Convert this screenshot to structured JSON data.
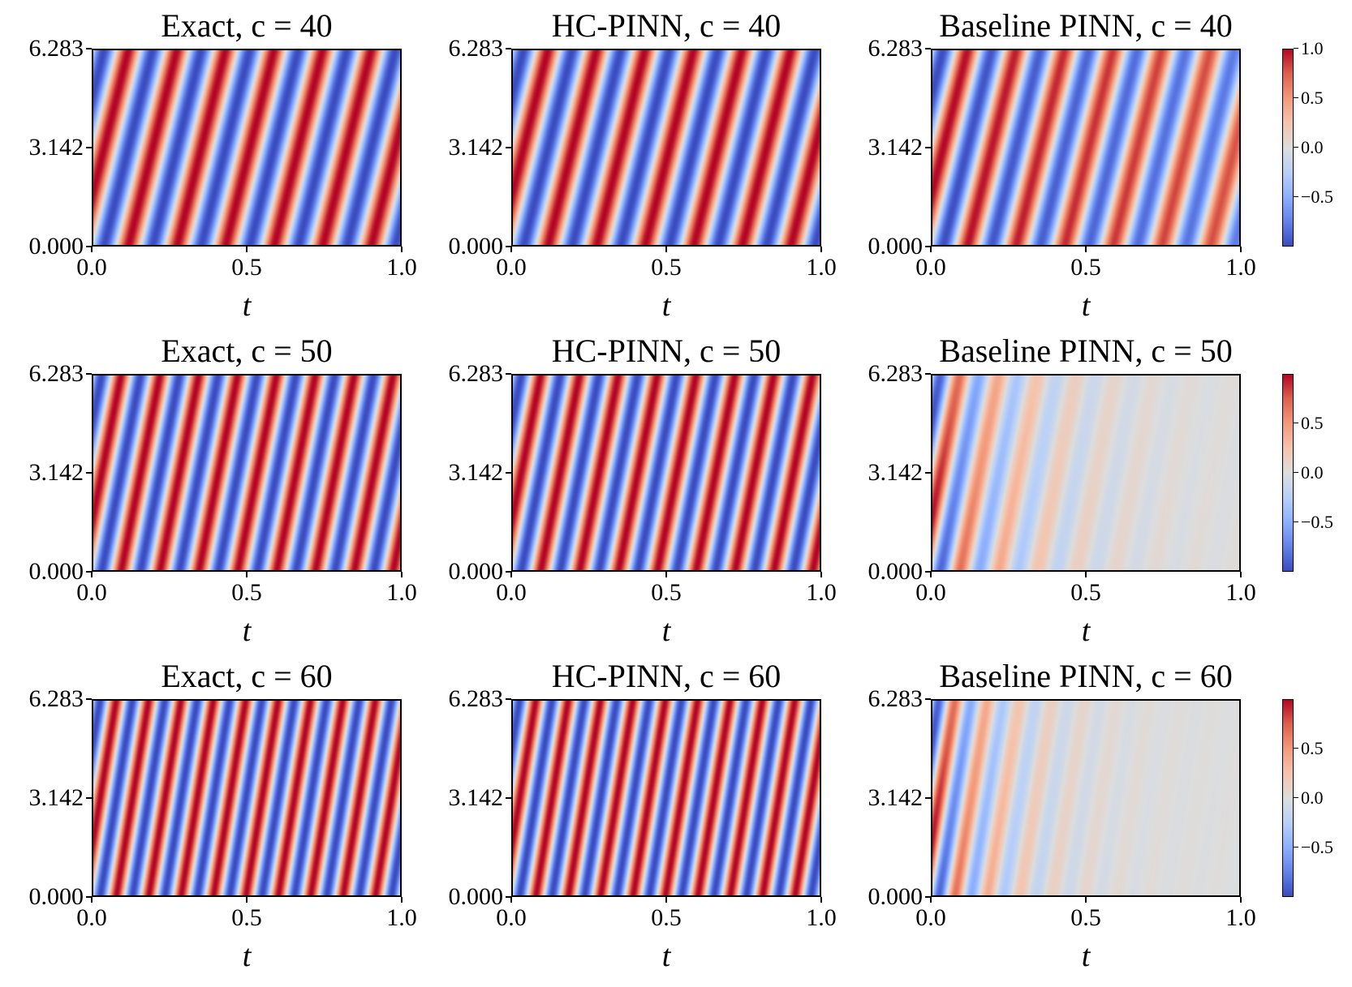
{
  "chart_data": {
    "type": "heatmap",
    "colormap": "coolwarm",
    "ylim": [
      0,
      6.283
    ],
    "xlim": [
      0.0,
      1.0
    ],
    "ytick_labels": [
      "6.283",
      "3.142",
      "0.000"
    ],
    "xtick_labels": [
      "0.0",
      "0.5",
      "1.0"
    ],
    "xlabel": "t",
    "rows": [
      {
        "c": 40,
        "colorbar_range": [
          -1.0,
          1.0
        ],
        "colorbar_ticks": [
          "1.0",
          "0.5",
          "0.0",
          "−0.5"
        ],
        "panels": [
          {
            "title": "Exact, c = 40",
            "model": "exact",
            "damping": 0
          },
          {
            "title": "HC-PINN, c = 40",
            "model": "hc",
            "damping": 0
          },
          {
            "title": "Baseline PINN, c = 40",
            "model": "baseline",
            "damping": 0.25
          }
        ]
      },
      {
        "c": 50,
        "colorbar_range": [
          -1.0,
          1.0
        ],
        "colorbar_ticks": [
          "0.5",
          "0.0",
          "−0.5"
        ],
        "panels": [
          {
            "title": "Exact, c = 50",
            "model": "exact",
            "damping": 0
          },
          {
            "title": "HC-PINN, c = 50",
            "model": "hc",
            "damping": 0
          },
          {
            "title": "Baseline PINN, c = 50",
            "model": "baseline",
            "damping": 4.0
          }
        ]
      },
      {
        "c": 60,
        "colorbar_range": [
          -1.0,
          1.0
        ],
        "colorbar_ticks": [
          "0.5",
          "0.0",
          "−0.5"
        ],
        "panels": [
          {
            "title": "Exact, c = 60",
            "model": "exact",
            "damping": 0
          },
          {
            "title": "HC-PINN, c = 60",
            "model": "hc",
            "damping": 0
          },
          {
            "title": "Baseline PINN, c = 60",
            "model": "baseline",
            "damping": 5.0
          }
        ]
      }
    ]
  }
}
